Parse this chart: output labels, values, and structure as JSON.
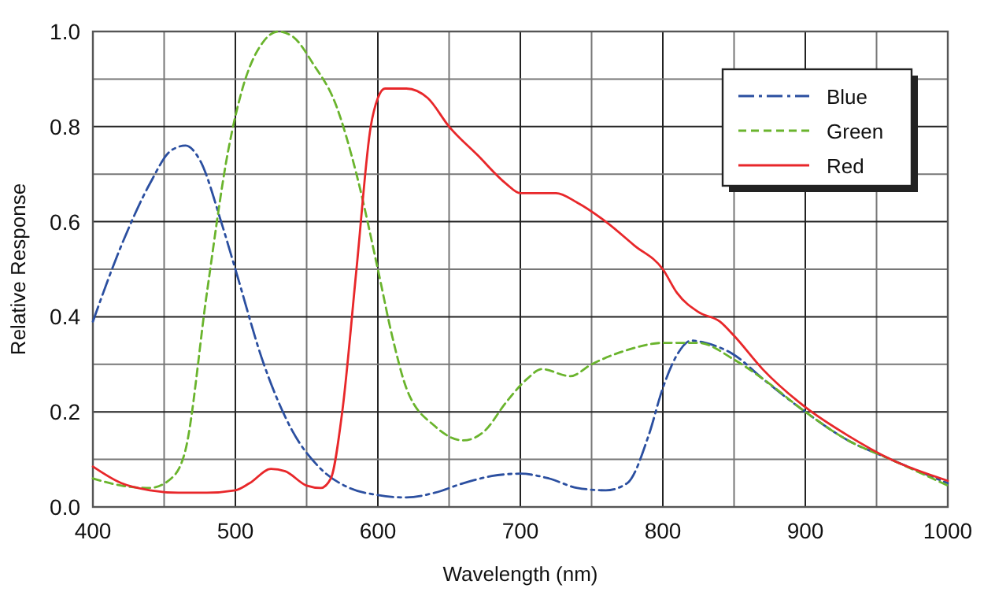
{
  "chart_data": {
    "type": "line",
    "xlabel": "Wavelength (nm)",
    "ylabel": "Relative Response",
    "xlim": [
      400,
      1000
    ],
    "ylim": [
      0,
      1
    ],
    "xticks": [
      400,
      {
        "value": 450,
        "label": null
      },
      500,
      {
        "value": 550,
        "label": null
      },
      600,
      {
        "value": 650,
        "label": null
      },
      700,
      {
        "value": 750,
        "label": null
      },
      800,
      {
        "value": 850,
        "label": null
      },
      900,
      {
        "value": 950,
        "label": null
      },
      1000
    ],
    "yticks": [
      "0.0",
      {
        "value": 0.1,
        "label": null
      },
      0.2,
      {
        "value": 0.3,
        "label": null
      },
      0.4,
      {
        "value": 0.5,
        "label": null
      },
      0.6,
      {
        "value": 0.7,
        "label": null
      },
      0.8,
      {
        "value": 0.9,
        "label": null
      },
      "1.0"
    ],
    "grid": true,
    "legend": "top right",
    "marker": "none",
    "series": [
      {
        "name": "Blue",
        "color": "#2b4fa0",
        "line_style": "dashdot",
        "x": [
          400,
          420,
          440,
          455,
          465,
          475,
          490,
          500,
          520,
          540,
          560,
          580,
          600,
          620,
          640,
          660,
          680,
          700,
          720,
          740,
          760,
          775,
          790,
          800,
          810,
          820,
          830,
          850,
          870,
          900,
          930,
          960,
          1000
        ],
        "values": [
          0.39,
          0.55,
          0.68,
          0.75,
          0.76,
          0.73,
          0.6,
          0.5,
          0.3,
          0.16,
          0.08,
          0.04,
          0.025,
          0.02,
          0.03,
          0.05,
          0.065,
          0.07,
          0.06,
          0.04,
          0.035,
          0.05,
          0.15,
          0.25,
          0.32,
          0.35,
          0.345,
          0.32,
          0.27,
          0.2,
          0.14,
          0.1,
          0.05
        ]
      },
      {
        "name": "Green",
        "color": "#6ab42d",
        "line_style": "dashed",
        "x": [
          400,
          420,
          440,
          455,
          465,
          480,
          495,
          505,
          520,
          530,
          540,
          555,
          570,
          585,
          600,
          610,
          620,
          640,
          660,
          675,
          690,
          705,
          715,
          735,
          750,
          775,
          800,
          825,
          850,
          870,
          900,
          930,
          960,
          1000
        ],
        "values": [
          0.06,
          0.045,
          0.04,
          0.06,
          0.12,
          0.45,
          0.75,
          0.88,
          0.98,
          1.0,
          0.99,
          0.93,
          0.85,
          0.7,
          0.5,
          0.36,
          0.25,
          0.17,
          0.14,
          0.16,
          0.22,
          0.27,
          0.29,
          0.275,
          0.3,
          0.33,
          0.345,
          0.345,
          0.31,
          0.27,
          0.2,
          0.14,
          0.1,
          0.045
        ]
      },
      {
        "name": "Red",
        "color": "#e8272a",
        "line_style": "solid",
        "x": [
          400,
          420,
          440,
          460,
          480,
          500,
          510,
          525,
          535,
          550,
          560,
          567,
          575,
          585,
          595,
          600,
          605,
          620,
          635,
          650,
          670,
          690,
          700,
          725,
          740,
          760,
          780,
          800,
          810,
          825,
          840,
          850,
          870,
          900,
          930,
          960,
          1000
        ],
        "values": [
          0.085,
          0.05,
          0.035,
          0.03,
          0.03,
          0.035,
          0.05,
          0.08,
          0.075,
          0.045,
          0.04,
          0.06,
          0.2,
          0.5,
          0.8,
          0.86,
          0.88,
          0.88,
          0.86,
          0.8,
          0.74,
          0.68,
          0.66,
          0.66,
          0.64,
          0.6,
          0.55,
          0.5,
          0.45,
          0.41,
          0.39,
          0.36,
          0.29,
          0.21,
          0.15,
          0.1,
          0.055
        ]
      }
    ]
  }
}
